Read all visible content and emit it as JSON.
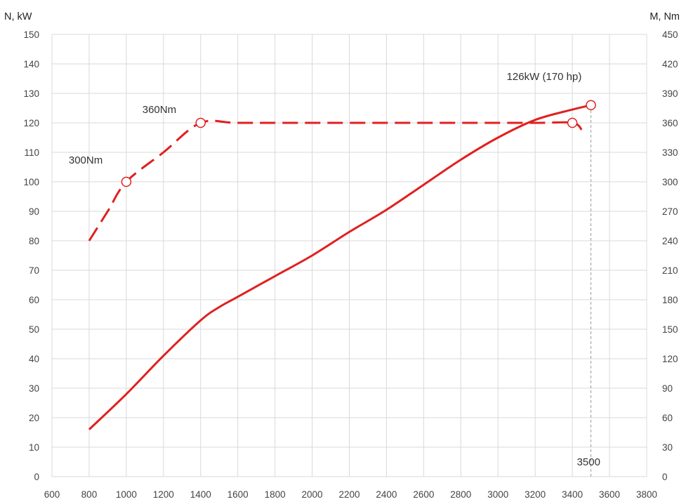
{
  "chart_data": {
    "type": "line",
    "left_axis_title": "N, kW",
    "right_axis_title": "M, Nm",
    "x_ticks": [
      600,
      800,
      1000,
      1200,
      1400,
      1600,
      1800,
      2000,
      2200,
      2400,
      2600,
      2800,
      3000,
      3200,
      3400,
      3600,
      3800
    ],
    "y_left_ticks": [
      0,
      10,
      20,
      30,
      40,
      50,
      60,
      70,
      80,
      90,
      100,
      110,
      120,
      130,
      140,
      150
    ],
    "y_right_ticks": [
      0,
      30,
      60,
      90,
      120,
      150,
      180,
      210,
      240,
      270,
      300,
      330,
      360,
      390,
      420,
      450
    ],
    "xlim": [
      600,
      3800
    ],
    "ylim_left": [
      0,
      150
    ],
    "ylim_right": [
      0,
      450
    ],
    "grid": true,
    "colors": {
      "series": "#e02020",
      "grid": "#d9d9d9",
      "reference": "#999999"
    },
    "series": [
      {
        "axis": "left",
        "style": "solid",
        "x": [
          800,
          1000,
          1200,
          1400,
          1500,
          1600,
          1800,
          2000,
          2200,
          2400,
          2600,
          2800,
          3000,
          3200,
          3400,
          3500
        ],
        "y": [
          16,
          28,
          41,
          53,
          57.5,
          61,
          68,
          75,
          83,
          90.5,
          99,
          107.5,
          115,
          121,
          124.5,
          126
        ]
      },
      {
        "axis": "right",
        "style": "dashed",
        "x": [
          800,
          900,
          1000,
          1200,
          1400,
          1600,
          2000,
          2400,
          2800,
          3200,
          3400,
          3450
        ],
        "y": [
          240,
          270,
          300,
          330,
          360,
          360,
          360,
          360,
          360,
          360,
          360,
          353
        ]
      }
    ],
    "markers": [
      {
        "x": 1000,
        "y": 300,
        "axis": "right"
      },
      {
        "x": 1400,
        "y": 360,
        "axis": "right"
      },
      {
        "x": 3400,
        "y": 360,
        "axis": "right"
      },
      {
        "x": 3500,
        "y": 126,
        "axis": "left"
      }
    ],
    "annotations": [
      {
        "text": "300Nm",
        "x": 1000,
        "y": 300,
        "axis": "right"
      },
      {
        "text": "360Nm",
        "x": 1400,
        "y": 360,
        "axis": "right"
      },
      {
        "text": "126kW (170 hp)",
        "x": 3500,
        "y": 126,
        "axis": "left"
      },
      {
        "text": "3500",
        "x": 3500,
        "y": 0,
        "axis": "left"
      }
    ],
    "reference_line": {
      "x": 3500,
      "y_from": 0,
      "y_to": 126,
      "axis": "left",
      "style": "dotted"
    }
  }
}
